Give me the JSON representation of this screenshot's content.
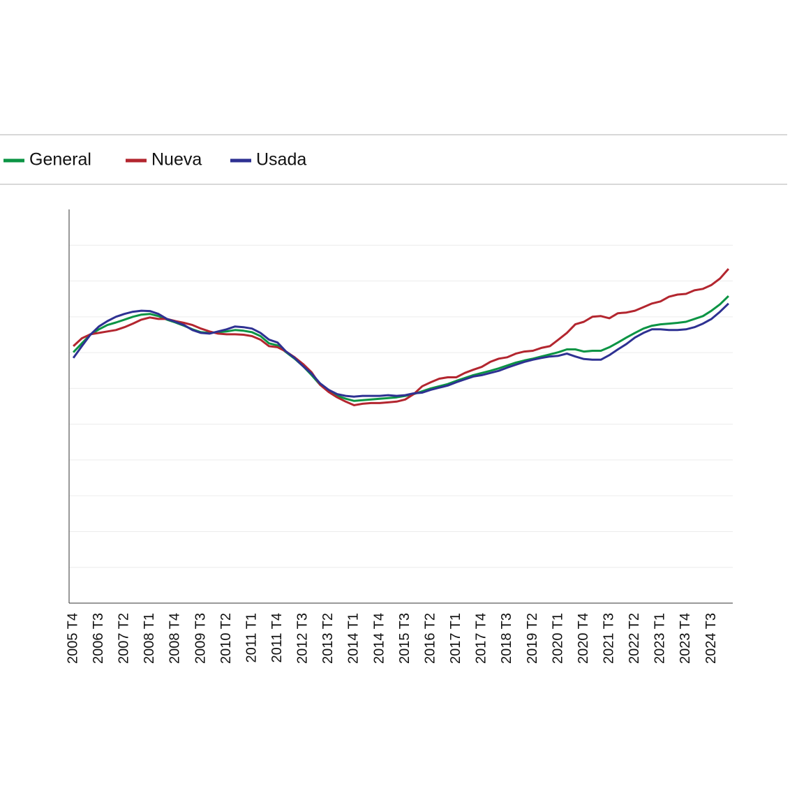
{
  "chart_data": {
    "type": "line",
    "categories": [
      "2005 T4",
      null,
      null,
      "2006 T3",
      null,
      null,
      "2007 T2",
      null,
      null,
      "2008 T1",
      null,
      null,
      "2008 T4",
      null,
      null,
      "2009 T3",
      null,
      null,
      "2010 T2",
      null,
      null,
      "2011 T1",
      null,
      null,
      "2011 T4",
      null,
      null,
      "2012 T3",
      null,
      null,
      "2013 T2",
      null,
      null,
      "2014 T1",
      null,
      null,
      "2014 T4",
      null,
      null,
      "2015 T3",
      null,
      null,
      "2016 T2",
      null,
      null,
      "2017 T1",
      null,
      null,
      "2017 T4",
      null,
      null,
      "2018 T3",
      null,
      null,
      "2019 T2",
      null,
      null,
      "2020 T1",
      null,
      null,
      "2020 T4",
      null,
      null,
      "2021 T3",
      null,
      null,
      "2022 T2",
      null,
      null,
      "2023 T1",
      null,
      null,
      "2023 T4",
      null,
      null,
      "2024 T3",
      null,
      null
    ],
    "series": [
      {
        "name": "General",
        "color": "#0b9444",
        "values": [
          70.1,
          72.6,
          75.0,
          76.5,
          77.7,
          78.4,
          79.2,
          80.0,
          80.6,
          80.8,
          80.2,
          79.2,
          78.4,
          77.5,
          76.5,
          75.7,
          75.5,
          75.7,
          75.9,
          76.3,
          76.1,
          75.7,
          74.6,
          72.6,
          72.0,
          70.1,
          68.3,
          66.2,
          63.7,
          61.0,
          59.2,
          57.9,
          57.1,
          56.5,
          56.7,
          56.9,
          57.1,
          57.3,
          57.5,
          57.9,
          58.4,
          59.2,
          60.0,
          60.6,
          61.2,
          62.1,
          62.9,
          63.7,
          64.3,
          64.9,
          65.6,
          66.4,
          67.2,
          67.8,
          68.3,
          68.9,
          69.5,
          70.1,
          70.9,
          70.9,
          70.3,
          70.5,
          70.5,
          71.5,
          72.8,
          74.2,
          75.5,
          76.7,
          77.5,
          77.9,
          78.1,
          78.3,
          78.6,
          79.4,
          80.2,
          81.7,
          83.5,
          85.8
        ]
      },
      {
        "name": "Nueva",
        "color": "#b3262f",
        "values": [
          71.8,
          74.0,
          75.1,
          75.5,
          75.9,
          76.3,
          77.1,
          78.1,
          79.2,
          79.8,
          79.4,
          79.4,
          78.8,
          78.3,
          77.7,
          76.7,
          75.9,
          75.3,
          75.1,
          75.1,
          75.0,
          74.6,
          73.6,
          71.8,
          71.5,
          70.3,
          68.7,
          66.8,
          64.5,
          61.0,
          59.0,
          57.5,
          56.3,
          55.3,
          55.7,
          55.9,
          55.9,
          56.1,
          56.3,
          56.9,
          58.4,
          60.6,
          61.7,
          62.7,
          63.1,
          63.1,
          64.3,
          65.2,
          66.0,
          67.4,
          68.3,
          68.7,
          69.7,
          70.3,
          70.5,
          71.3,
          71.8,
          73.6,
          75.5,
          77.9,
          78.6,
          80.0,
          80.2,
          79.6,
          81.0,
          81.2,
          81.7,
          82.7,
          83.7,
          84.3,
          85.6,
          86.2,
          86.4,
          87.4,
          87.8,
          88.9,
          90.7,
          93.4
        ]
      },
      {
        "name": "Usada",
        "color": "#2e3192",
        "values": [
          68.5,
          71.8,
          75.0,
          77.3,
          78.8,
          80.0,
          80.8,
          81.4,
          81.7,
          81.6,
          80.8,
          79.4,
          78.6,
          77.7,
          76.3,
          75.5,
          75.3,
          75.9,
          76.5,
          77.3,
          77.1,
          76.7,
          75.5,
          73.6,
          72.8,
          70.3,
          68.5,
          66.2,
          64.1,
          61.4,
          59.6,
          58.4,
          57.9,
          57.7,
          57.9,
          57.9,
          57.9,
          58.1,
          57.9,
          58.1,
          58.6,
          58.8,
          59.6,
          60.2,
          60.8,
          61.7,
          62.5,
          63.3,
          63.7,
          64.3,
          64.9,
          65.8,
          66.6,
          67.4,
          68.0,
          68.5,
          68.9,
          69.1,
          69.7,
          68.9,
          68.2,
          68.0,
          68.0,
          69.3,
          70.9,
          72.4,
          74.2,
          75.5,
          76.5,
          76.5,
          76.3,
          76.3,
          76.5,
          77.1,
          78.1,
          79.4,
          81.4,
          83.7
        ]
      }
    ],
    "ylim": [
      0,
      110
    ],
    "yticks": [
      10,
      20,
      30,
      40,
      50,
      60,
      70,
      80,
      90,
      100
    ],
    "grid": true
  }
}
